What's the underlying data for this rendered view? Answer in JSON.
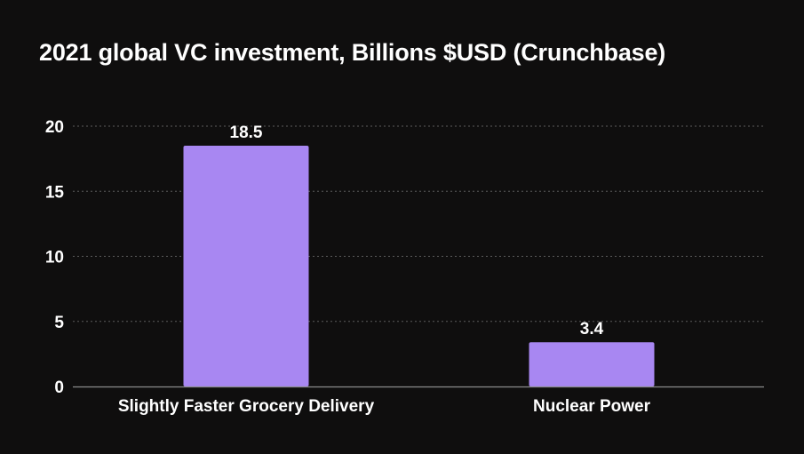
{
  "chart_data": {
    "type": "bar",
    "title": "2021 global VC investment, Billions $USD (Crunchbase)",
    "categories": [
      "Slightly Faster Grocery Delivery",
      "Nuclear Power"
    ],
    "values": [
      18.5,
      3.4
    ],
    "data_labels": [
      "18.5",
      "3.4"
    ],
    "xlabel": "",
    "ylabel": "",
    "ylim": [
      0,
      20
    ],
    "yticks": [
      0,
      5,
      10,
      15,
      20
    ],
    "ytick_labels": [
      "0",
      "5",
      "10",
      "15",
      "20"
    ],
    "grid": true,
    "legend": "none"
  },
  "colors": {
    "background": "#0f0e0e",
    "bar": "#a887f2",
    "grid": "#5c5c5c",
    "axis": "#8a8a8a",
    "text": "#ffffff"
  }
}
